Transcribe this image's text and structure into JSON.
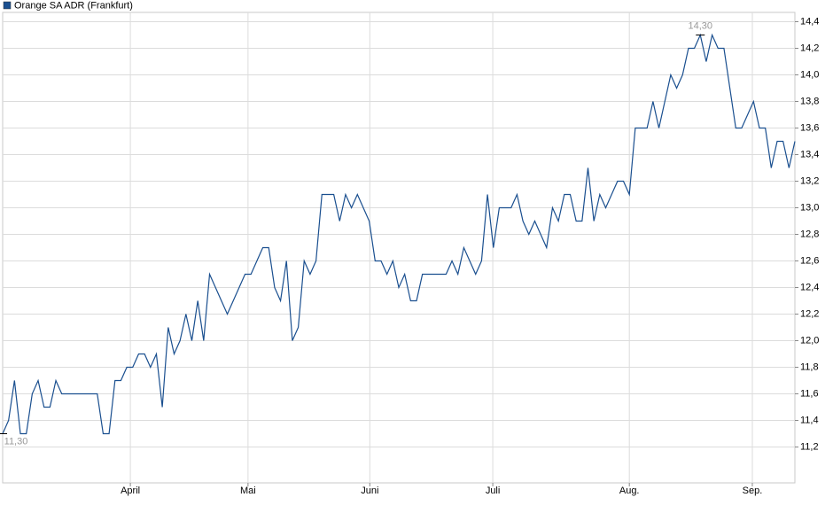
{
  "chart_data": {
    "type": "line",
    "series": [
      {
        "name": "Orange SA ADR (Frankfurt)",
        "color": "#1a4f8f",
        "values": [
          11.3,
          11.4,
          11.7,
          11.3,
          11.3,
          11.6,
          11.7,
          11.5,
          11.5,
          11.7,
          11.6,
          11.6,
          11.6,
          11.6,
          11.6,
          11.6,
          11.6,
          11.3,
          11.3,
          11.7,
          11.7,
          11.8,
          11.8,
          11.9,
          11.9,
          11.8,
          11.9,
          11.5,
          12.1,
          11.9,
          12.0,
          12.2,
          12.0,
          12.3,
          12.0,
          12.5,
          12.4,
          12.3,
          12.2,
          12.3,
          12.4,
          12.5,
          12.5,
          12.6,
          12.7,
          12.7,
          12.4,
          12.3,
          12.6,
          12.0,
          12.1,
          12.6,
          12.5,
          12.6,
          13.1,
          13.1,
          13.1,
          12.9,
          13.1,
          13.0,
          13.1,
          13.0,
          12.9,
          12.6,
          12.6,
          12.5,
          12.6,
          12.4,
          12.5,
          12.3,
          12.3,
          12.5,
          12.5,
          12.5,
          12.5,
          12.5,
          12.6,
          12.5,
          12.7,
          12.6,
          12.5,
          12.6,
          13.1,
          12.7,
          13.0,
          13.0,
          13.0,
          13.1,
          12.9,
          12.8,
          12.9,
          12.8,
          12.7,
          13.0,
          12.9,
          13.1,
          13.1,
          12.9,
          12.9,
          13.3,
          12.9,
          13.1,
          13.0,
          13.1,
          13.2,
          13.2,
          13.1,
          13.6,
          13.6,
          13.6,
          13.8,
          13.6,
          13.8,
          14.0,
          13.9,
          14.0,
          14.2,
          14.2,
          14.3,
          14.1,
          14.3,
          14.2,
          14.2,
          13.9,
          13.6,
          13.6,
          13.7,
          13.8,
          13.6,
          13.6,
          13.3,
          13.5,
          13.5,
          13.3,
          13.5
        ]
      }
    ],
    "xlim": [
      0,
      134
    ],
    "xticks": [
      {
        "value": 21.6,
        "label": "April"
      },
      {
        "value": 41.5,
        "label": "Mai"
      },
      {
        "value": 62.1,
        "label": "Juni"
      },
      {
        "value": 82.9,
        "label": "Juli"
      },
      {
        "value": 106,
        "label": "Aug."
      },
      {
        "value": 126.8,
        "label": "Sep."
      }
    ],
    "ylim": [
      10.93,
      14.47
    ],
    "yticks": [
      {
        "value": 11.2,
        "label": "11,2"
      },
      {
        "value": 11.4,
        "label": "11,4"
      },
      {
        "value": 11.6,
        "label": "11,6"
      },
      {
        "value": 11.8,
        "label": "11,8"
      },
      {
        "value": 12.0,
        "label": "12,0"
      },
      {
        "value": 12.2,
        "label": "12,2"
      },
      {
        "value": 12.4,
        "label": "12,4"
      },
      {
        "value": 12.6,
        "label": "12,6"
      },
      {
        "value": 12.8,
        "label": "12,8"
      },
      {
        "value": 13.0,
        "label": "13,0"
      },
      {
        "value": 13.2,
        "label": "13,2"
      },
      {
        "value": 13.4,
        "label": "13,4"
      },
      {
        "value": 13.6,
        "label": "13,6"
      },
      {
        "value": 13.8,
        "label": "13,8"
      },
      {
        "value": 14.0,
        "label": "14,0"
      },
      {
        "value": 14.2,
        "label": "14,2"
      },
      {
        "value": 14.4,
        "label": "14,4"
      }
    ],
    "annotations": [
      {
        "text": "14,30",
        "value": 14.3
      },
      {
        "text": "11,30",
        "value": 11.3
      }
    ],
    "grid": true
  }
}
